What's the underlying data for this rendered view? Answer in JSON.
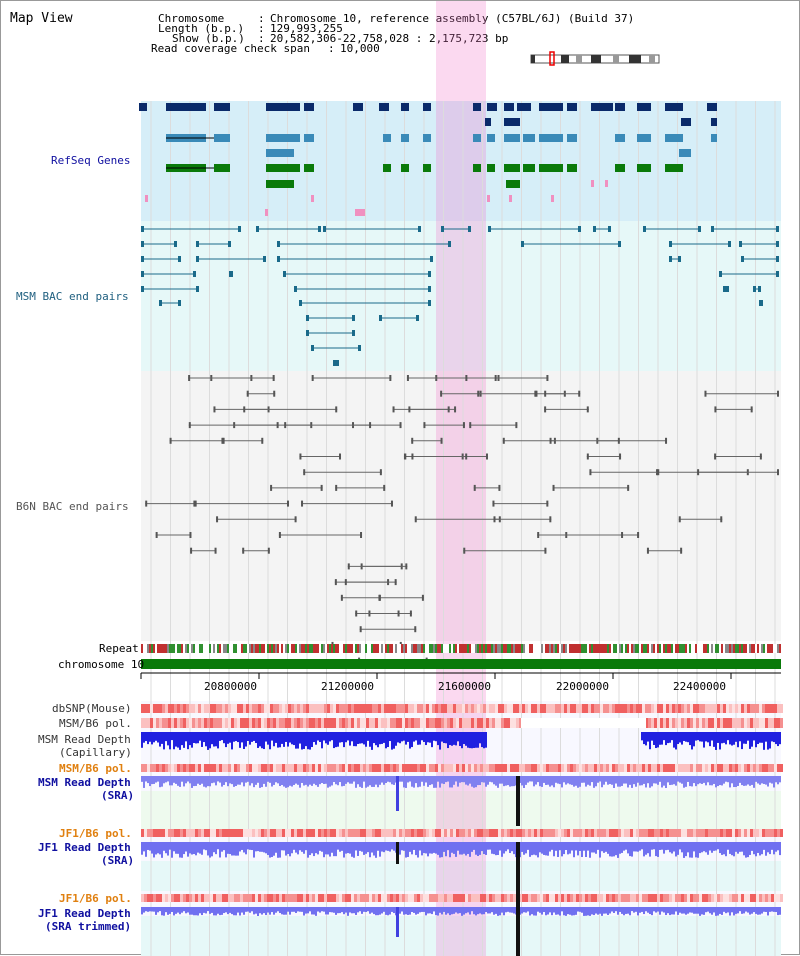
{
  "view_title": "Map View",
  "info": {
    "l1_key": "Chromosome",
    "l1_val": "Chromosome 10, reference assembly (C57BL/6J) (Build 37)",
    "l2_key": "Length (b.p.)",
    "l2_val": "129,993,255",
    "l3_key": "Show (b.p.)",
    "l3_val": "20,582,306-22,758,028 : 2,175,723 bp",
    "l4_key": "Read coverage check span",
    "l4_val": "10,000"
  },
  "tracks": {
    "refseq": "RefSeq Genes",
    "msm_bac": "MSM BAC end pairs",
    "b6n_bac": "B6N BAC end pairs",
    "repeat": "Repeat",
    "chromosome": "chromosome 10",
    "dbsnp": "dbSNP(Mouse)",
    "msm_b6_pol": "MSM/B6 pol.",
    "msm_depth_cap_1": "MSM Read Depth",
    "msm_depth_cap_2": "(Capillary)",
    "msm_b6_pol2": "MSM/B6 pol.",
    "msm_depth_sra_1": "MSM Read Depth",
    "msm_depth_sra_2": "(SRA)",
    "jf1_b6_pol": "JF1/B6 pol.",
    "jf1_depth_1": "JF1 Read Depth",
    "jf1_depth_2": "(SRA)",
    "jf1_b6_pol2": "JF1/B6 pol.",
    "jf1_trim_1": "JF1 Read Depth",
    "jf1_trim_2": "(SRA trimmed)"
  },
  "axis_ticks": [
    "20800000",
    "21200000",
    "21600000",
    "22000000",
    "22400000"
  ],
  "colors": {
    "refseq_bg": "#d6eef8",
    "msm_bg": "#e6f8f8",
    "highlight": "#f7c8ea",
    "chrom_bar": "#0a7a0a",
    "depth_blue": "#2020e0",
    "depth_light": "#7f7ff0",
    "pol_red": "#f06060"
  }
}
